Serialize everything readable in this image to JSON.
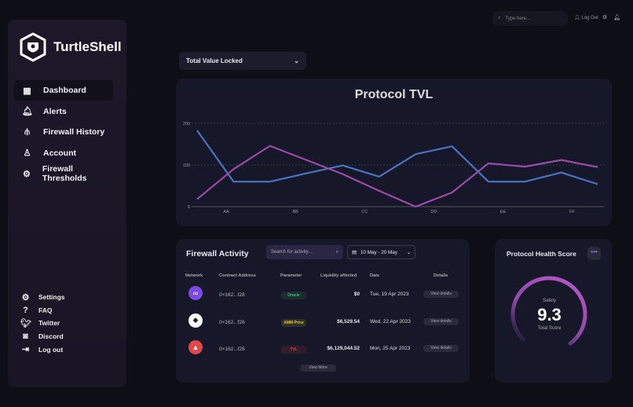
{
  "sidebar": {
    "brand": "TurtleShell",
    "nav": [
      {
        "label": "Dashboard",
        "icon": "grid-icon",
        "active": true
      },
      {
        "label": "Alerts",
        "icon": "bell-icon"
      },
      {
        "label": "Firewall History",
        "icon": "history-chart-icon"
      },
      {
        "label": "Account",
        "icon": "user-icon"
      },
      {
        "label": "Firewall Thresholds",
        "icon": "gear-icon"
      }
    ],
    "bottom": [
      {
        "label": "Settings",
        "icon": "gear-icon"
      },
      {
        "label": "FAQ",
        "icon": "question-icon"
      },
      {
        "label": "Twitter",
        "icon": "twitter-icon"
      },
      {
        "label": "Discord",
        "icon": "discord-icon"
      },
      {
        "label": "Log out",
        "icon": "logout-icon"
      }
    ]
  },
  "topbar": {
    "search_placeholder": "Type here...",
    "logout": "Log Out"
  },
  "metric_dropdown": {
    "selected": "Total Value Locked"
  },
  "chart_data": {
    "type": "line",
    "title": "Protocol TVL",
    "ylim": [
      0,
      200
    ],
    "yticks": [
      "0",
      "100",
      "200"
    ],
    "xlabels": [
      "AA",
      "BB",
      "CC",
      "DD",
      "EE",
      "FF"
    ],
    "grid": true,
    "series": [
      {
        "color": "#4a72c0",
        "values": [
          183,
          60,
          60,
          80,
          99,
          72,
          126,
          145,
          60,
          60,
          82,
          54
        ]
      },
      {
        "color": "#9b4aa8",
        "values": [
          18,
          90,
          146,
          112,
          78,
          38,
          0,
          34,
          104,
          96,
          112,
          95
        ]
      }
    ]
  },
  "activity": {
    "title": "Firewall Activity",
    "search_placeholder": "Search for activity....",
    "date_range": "10 May - 20 May",
    "headers": [
      "Network",
      "Contract Address",
      "Parameter",
      "Liquidity affected",
      "Date",
      "Details"
    ],
    "rows": [
      {
        "network": "polygon",
        "address": "0×162...f28",
        "parameter": "Oracle",
        "param_color": "#3bbf6b",
        "liquidity": "$0",
        "date": "Tue, 19 Apr 2023",
        "details": "View details"
      },
      {
        "network": "ethereum",
        "address": "0×162...f28",
        "parameter": "AMM Price",
        "param_color": "#e0c832",
        "liquidity": "$6,529.54",
        "date": "Wed, 22 Apr 2023",
        "details": "View details"
      },
      {
        "network": "avalanche",
        "address": "0×162...f28",
        "parameter": "TVL",
        "param_color": "#e04040",
        "liquidity": "$6,129,044.52",
        "date": "Mon, 25 Apr 2023",
        "details": "View details"
      }
    ],
    "view_more": "View More"
  },
  "health": {
    "title": "Protocol Health Score",
    "label": "Safety",
    "score": "9.3",
    "sublabel": "Total Score",
    "score_max": 10
  }
}
